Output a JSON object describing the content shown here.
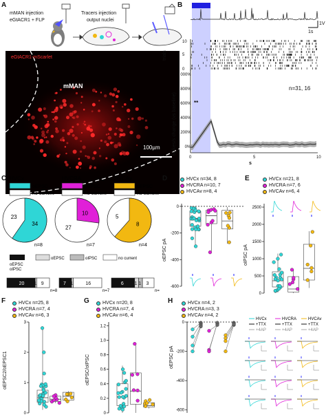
{
  "panels": {
    "a": "A",
    "b": "B",
    "c": "C",
    "d": "D",
    "e": "E",
    "f": "F",
    "g": "G",
    "h": "H"
  },
  "panelA": {
    "injection_line1": "mMAN injection",
    "injection_line2": "eGtACR1 + FLP",
    "tracers_line1": "Tracers injection",
    "tracers_line2": "output nuclei",
    "stain_label": "eGtACR1-mScarlet",
    "region_label": "mMAN",
    "scale_label": "100µm"
  },
  "panelB": {
    "scale_v": "1V",
    "scale_t": "1s",
    "trials_label": "trials",
    "ylabel": "spikes/s change (vs baseline)",
    "xlabel": "s",
    "stat": "n=31, 16",
    "signif": "**"
  },
  "panelC": {
    "groups": [
      {
        "name": "HVCx",
        "legend": "oEPSC",
        "none": "no current",
        "color": "#2fd6d6",
        "a": 34,
        "b": 23,
        "n": "n=8"
      },
      {
        "name": "HVCRA",
        "legend": "oEPSC",
        "none": "no current",
        "color": "#e020d8",
        "a": 10,
        "b": 27,
        "n": "n=7"
      },
      {
        "name": "HVCAv",
        "legend": "oEPSC",
        "none": "no current",
        "color": "#f2b811",
        "a": 8,
        "b": 5,
        "n": "n=4"
      }
    ],
    "legend2": {
      "both": "oEPSC\noIPSC",
      "epsc": "oEPSC",
      "ipsc": "oIPSC",
      "none": "no current"
    },
    "bars": [
      {
        "both": 20,
        "epsc": 1,
        "none": 9,
        "n": "n=8"
      },
      {
        "both": 7,
        "epsc": 1,
        "none": 16,
        "n": "n=7"
      },
      {
        "both": 6,
        "epsc": 1,
        "ipsc": 1,
        "none": 3,
        "n": "n=4"
      }
    ]
  },
  "panelD": {
    "legend": [
      "HVCx n=34, 8",
      "HVCRA n=10, 7",
      "HVCAv n=8, 4"
    ],
    "ylabel": "oEPSC pA",
    "yticks": [
      "0",
      "-200",
      "-400",
      "-600"
    ]
  },
  "panelE": {
    "legend": [
      "HVCx n=21, 8",
      "HVCRA n=7, 6",
      "HVCAv n=6, 4"
    ],
    "ylabel": "oIPSC pA",
    "yticks": [
      "2500",
      "2000",
      "1500",
      "1000",
      "500",
      "0"
    ]
  },
  "panelF": {
    "legend": [
      "HVCx n=25, 8",
      "HVCRA n=7, 4",
      "HVCAv n=6, 3"
    ],
    "ylabel": "oEPSC2/oEPSC1",
    "yticks": [
      "3",
      "2",
      "1",
      "0"
    ]
  },
  "panelG": {
    "legend": [
      "HVCx n=20, 8",
      "HVCRA n=7, 4",
      "HVCAv n=6, 4"
    ],
    "ylabel": "oEPSC/oIPSC",
    "yticks": [
      "1.2",
      "1.0",
      "0.8",
      "0.6",
      "0.4",
      "0.2",
      "0"
    ]
  },
  "panelH": {
    "legend": [
      "HVCx n=4, 2",
      "HVCRA n=3, 3",
      "HVCAv n=4, 2"
    ],
    "ylabel": "oEPSC pA",
    "yticks": [
      "0",
      "-200",
      "-400",
      "-600"
    ],
    "cond_names": [
      "HVCx",
      "HVCRA",
      "HVCAv"
    ],
    "cond_ttx": "+TTX",
    "cond_4ap": "+4AP"
  },
  "colors": {
    "cyan": "#2fd6d6",
    "magenta": "#e020d8",
    "gold": "#f2b811",
    "blue": "#5a5aff"
  }
}
